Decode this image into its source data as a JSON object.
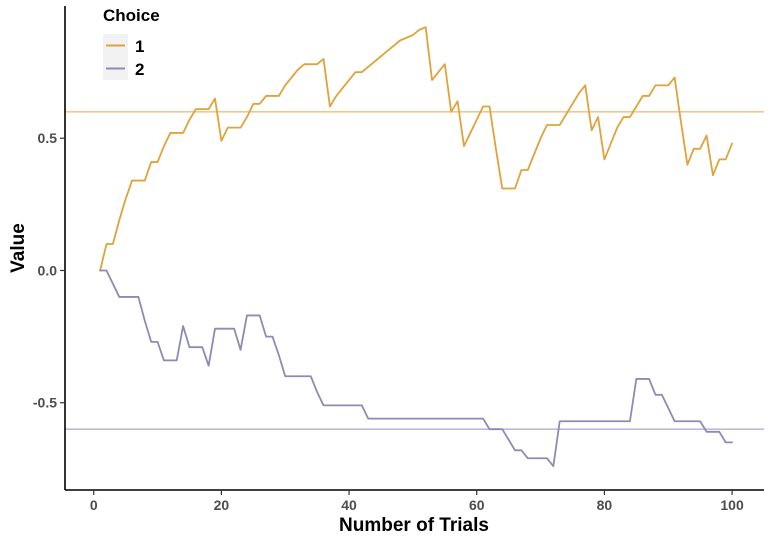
{
  "chart_data": {
    "type": "line",
    "xlabel": "Number of Trials",
    "ylabel": "Value",
    "xlim": [
      -4.5,
      105
    ],
    "ylim": [
      -0.83,
      1.0
    ],
    "x_ticks": [
      {
        "value": 0,
        "label": "0"
      },
      {
        "value": 20,
        "label": "20"
      },
      {
        "value": 40,
        "label": "40"
      },
      {
        "value": 60,
        "label": "60"
      },
      {
        "value": 80,
        "label": "80"
      },
      {
        "value": 100,
        "label": "100"
      }
    ],
    "y_ticks": [
      {
        "value": -0.5,
        "label": "-0.5"
      },
      {
        "value": 0.0,
        "label": "0.0"
      },
      {
        "value": 0.5,
        "label": "0.5"
      }
    ],
    "grid": false,
    "legend": {
      "title": "Choice",
      "position": "top-left"
    },
    "series": [
      {
        "name": "1",
        "color": "#e0a33a",
        "points": [
          [
            1,
            0.0
          ],
          [
            2,
            0.1
          ],
          [
            3,
            0.1
          ],
          [
            4,
            0.19
          ],
          [
            5,
            0.27
          ],
          [
            6,
            0.34
          ],
          [
            7,
            0.34
          ],
          [
            8,
            0.34
          ],
          [
            9,
            0.41
          ],
          [
            10,
            0.41
          ],
          [
            11,
            0.47
          ],
          [
            12,
            0.52
          ],
          [
            13,
            0.52
          ],
          [
            14,
            0.52
          ],
          [
            15,
            0.57
          ],
          [
            16,
            0.61
          ],
          [
            17,
            0.61
          ],
          [
            18,
            0.61
          ],
          [
            19,
            0.65
          ],
          [
            20,
            0.49
          ],
          [
            21,
            0.54
          ],
          [
            22,
            0.54
          ],
          [
            23,
            0.54
          ],
          [
            24,
            0.58
          ],
          [
            25,
            0.63
          ],
          [
            26,
            0.63
          ],
          [
            27,
            0.66
          ],
          [
            28,
            0.66
          ],
          [
            29,
            0.66
          ],
          [
            30,
            0.7
          ],
          [
            31,
            0.73
          ],
          [
            32,
            0.76
          ],
          [
            33,
            0.78
          ],
          [
            34,
            0.78
          ],
          [
            35,
            0.78
          ],
          [
            36,
            0.8
          ],
          [
            37,
            0.62
          ],
          [
            38,
            0.66
          ],
          [
            39,
            0.69
          ],
          [
            40,
            0.72
          ],
          [
            41,
            0.75
          ],
          [
            42,
            0.75
          ],
          [
            43,
            0.77
          ],
          [
            44,
            0.79
          ],
          [
            45,
            0.81
          ],
          [
            46,
            0.83
          ],
          [
            47,
            0.85
          ],
          [
            48,
            0.87
          ],
          [
            49,
            0.88
          ],
          [
            50,
            0.89
          ],
          [
            51,
            0.91
          ],
          [
            52,
            0.92
          ],
          [
            53,
            0.72
          ],
          [
            54,
            0.75
          ],
          [
            55,
            0.78
          ],
          [
            56,
            0.6
          ],
          [
            57,
            0.64
          ],
          [
            58,
            0.47
          ],
          [
            59,
            0.52
          ],
          [
            60,
            0.57
          ],
          [
            61,
            0.62
          ],
          [
            62,
            0.62
          ],
          [
            63,
            0.46
          ],
          [
            64,
            0.31
          ],
          [
            65,
            0.31
          ],
          [
            66,
            0.31
          ],
          [
            67,
            0.38
          ],
          [
            68,
            0.38
          ],
          [
            69,
            0.44
          ],
          [
            70,
            0.5
          ],
          [
            71,
            0.55
          ],
          [
            72,
            0.55
          ],
          [
            73,
            0.55
          ],
          [
            74,
            0.59
          ],
          [
            75,
            0.63
          ],
          [
            76,
            0.67
          ],
          [
            77,
            0.7
          ],
          [
            78,
            0.53
          ],
          [
            79,
            0.58
          ],
          [
            80,
            0.42
          ],
          [
            81,
            0.48
          ],
          [
            82,
            0.54
          ],
          [
            83,
            0.58
          ],
          [
            84,
            0.58
          ],
          [
            85,
            0.62
          ],
          [
            86,
            0.66
          ],
          [
            87,
            0.66
          ],
          [
            88,
            0.7
          ],
          [
            89,
            0.7
          ],
          [
            90,
            0.7
          ],
          [
            91,
            0.73
          ],
          [
            92,
            0.56
          ],
          [
            93,
            0.4
          ],
          [
            94,
            0.46
          ],
          [
            95,
            0.46
          ],
          [
            96,
            0.51
          ],
          [
            97,
            0.36
          ],
          [
            98,
            0.42
          ],
          [
            99,
            0.42
          ],
          [
            100,
            0.48
          ]
        ]
      },
      {
        "name": "2",
        "color": "#8e8ab8",
        "points": [
          [
            1,
            0.0
          ],
          [
            2,
            0.0
          ],
          [
            3,
            -0.05
          ],
          [
            4,
            -0.1
          ],
          [
            5,
            -0.1
          ],
          [
            6,
            -0.1
          ],
          [
            7,
            -0.1
          ],
          [
            8,
            -0.19
          ],
          [
            9,
            -0.27
          ],
          [
            10,
            -0.27
          ],
          [
            11,
            -0.34
          ],
          [
            12,
            -0.34
          ],
          [
            13,
            -0.34
          ],
          [
            14,
            -0.21
          ],
          [
            15,
            -0.29
          ],
          [
            16,
            -0.29
          ],
          [
            17,
            -0.29
          ],
          [
            18,
            -0.36
          ],
          [
            19,
            -0.22
          ],
          [
            20,
            -0.22
          ],
          [
            21,
            -0.22
          ],
          [
            22,
            -0.22
          ],
          [
            23,
            -0.3
          ],
          [
            24,
            -0.17
          ],
          [
            25,
            -0.17
          ],
          [
            26,
            -0.17
          ],
          [
            27,
            -0.25
          ],
          [
            28,
            -0.25
          ],
          [
            29,
            -0.32
          ],
          [
            30,
            -0.4
          ],
          [
            31,
            -0.4
          ],
          [
            32,
            -0.4
          ],
          [
            33,
            -0.4
          ],
          [
            34,
            -0.4
          ],
          [
            35,
            -0.46
          ],
          [
            36,
            -0.51
          ],
          [
            37,
            -0.51
          ],
          [
            38,
            -0.51
          ],
          [
            39,
            -0.51
          ],
          [
            40,
            -0.51
          ],
          [
            41,
            -0.51
          ],
          [
            42,
            -0.51
          ],
          [
            43,
            -0.56
          ],
          [
            44,
            -0.56
          ],
          [
            45,
            -0.56
          ],
          [
            46,
            -0.56
          ],
          [
            47,
            -0.56
          ],
          [
            48,
            -0.56
          ],
          [
            49,
            -0.56
          ],
          [
            50,
            -0.56
          ],
          [
            51,
            -0.56
          ],
          [
            52,
            -0.56
          ],
          [
            53,
            -0.56
          ],
          [
            54,
            -0.56
          ],
          [
            55,
            -0.56
          ],
          [
            56,
            -0.56
          ],
          [
            57,
            -0.56
          ],
          [
            58,
            -0.56
          ],
          [
            59,
            -0.56
          ],
          [
            60,
            -0.56
          ],
          [
            61,
            -0.56
          ],
          [
            62,
            -0.6
          ],
          [
            63,
            -0.6
          ],
          [
            64,
            -0.6
          ],
          [
            65,
            -0.64
          ],
          [
            66,
            -0.68
          ],
          [
            67,
            -0.68
          ],
          [
            68,
            -0.71
          ],
          [
            69,
            -0.71
          ],
          [
            70,
            -0.71
          ],
          [
            71,
            -0.71
          ],
          [
            72,
            -0.74
          ],
          [
            73,
            -0.57
          ],
          [
            74,
            -0.57
          ],
          [
            75,
            -0.57
          ],
          [
            76,
            -0.57
          ],
          [
            77,
            -0.57
          ],
          [
            78,
            -0.57
          ],
          [
            79,
            -0.57
          ],
          [
            80,
            -0.57
          ],
          [
            81,
            -0.57
          ],
          [
            82,
            -0.57
          ],
          [
            83,
            -0.57
          ],
          [
            84,
            -0.57
          ],
          [
            85,
            -0.41
          ],
          [
            86,
            -0.41
          ],
          [
            87,
            -0.41
          ],
          [
            88,
            -0.47
          ],
          [
            89,
            -0.47
          ],
          [
            90,
            -0.52
          ],
          [
            91,
            -0.57
          ],
          [
            92,
            -0.57
          ],
          [
            93,
            -0.57
          ],
          [
            94,
            -0.57
          ],
          [
            95,
            -0.57
          ],
          [
            96,
            -0.61
          ],
          [
            97,
            -0.61
          ],
          [
            98,
            -0.61
          ],
          [
            99,
            -0.65
          ],
          [
            100,
            -0.65
          ]
        ]
      }
    ],
    "reference_lines": [
      {
        "y": 0.6,
        "color": "#f0c98a"
      },
      {
        "y": -0.6,
        "color": "#bdbbd8"
      }
    ]
  }
}
